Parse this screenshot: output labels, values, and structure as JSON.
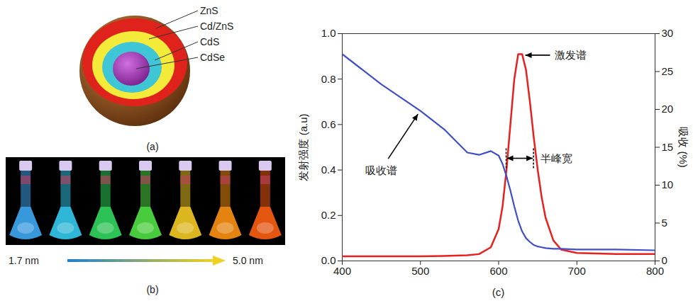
{
  "diagram": {
    "label": "(a)",
    "layers": [
      "ZnS",
      "Cd/ZnS",
      "CdS",
      "CdSe"
    ]
  },
  "photo": {
    "label": "(b)",
    "size_range": [
      "1.7 nm",
      "5.0 nm"
    ]
  },
  "chart_data": {
    "type": "line",
    "label": "(c)",
    "x": [
      400,
      450,
      500,
      530,
      560,
      575,
      590,
      600,
      605,
      610,
      615,
      620,
      625,
      630,
      635,
      640,
      645,
      650,
      655,
      660,
      670,
      680,
      700,
      750,
      800
    ],
    "xlim": [
      400,
      800
    ],
    "xticks": [
      400,
      500,
      600,
      700,
      800
    ],
    "ylim": [
      0,
      1
    ],
    "yticks": [
      {
        "value": 0,
        "label": "0.0"
      },
      {
        "value": 0.2,
        "label": "0.2"
      },
      {
        "value": 0.4,
        "label": "0.4"
      },
      {
        "value": 0.6,
        "label": "0.6"
      },
      {
        "value": 0.8,
        "label": "0.8"
      },
      {
        "value": 1,
        "label": "1.0"
      }
    ],
    "y2lim": [
      0,
      30
    ],
    "y2ticks": [
      0,
      5,
      10,
      15,
      20,
      25,
      30
    ],
    "ylabel": "发射强度 (a.u)",
    "y2label": "吸收 (%)",
    "grid": false,
    "series": [
      {
        "name": "吸收谱",
        "color": "#3e4fc8",
        "axis": "y2",
        "values": [
          27.3,
          23.3,
          19.8,
          17.4,
          14.3,
          14.0,
          14.5,
          13.9,
          12.8,
          11.2,
          9.3,
          7.2,
          5.3,
          3.9,
          3.0,
          2.5,
          2.1,
          1.9,
          1.8,
          1.7,
          1.6,
          1.6,
          1.5,
          1.5,
          1.4
        ]
      },
      {
        "name": "激发谱",
        "color": "#e8201e",
        "values": [
          0.02,
          0.02,
          0.02,
          0.022,
          0.025,
          0.03,
          0.06,
          0.14,
          0.24,
          0.4,
          0.6,
          0.8,
          0.91,
          0.91,
          0.84,
          0.7,
          0.54,
          0.4,
          0.28,
          0.19,
          0.09,
          0.05,
          0.035,
          0.03,
          0.03
        ]
      }
    ],
    "fwhm": {
      "label": "半峰宽",
      "x": [
        610,
        645
      ],
      "y": 0.45
    }
  }
}
